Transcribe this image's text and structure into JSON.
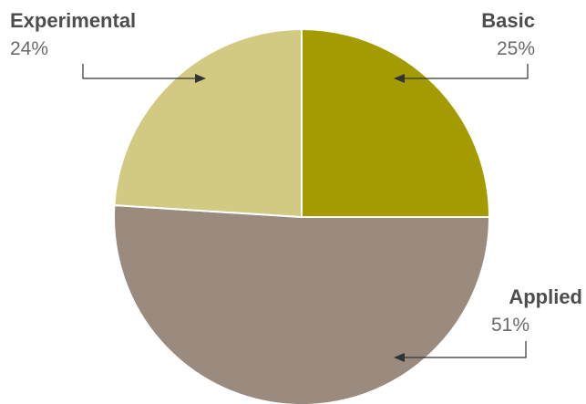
{
  "chart_data": {
    "type": "pie",
    "title": "",
    "slices": [
      {
        "label": "Basic",
        "value": 25,
        "display": "25%",
        "color": "#a39b00"
      },
      {
        "label": "Applied",
        "value": 51,
        "display": "51%",
        "color": "#9a8b7e"
      },
      {
        "label": "Experimental",
        "value": 24,
        "display": "24%",
        "color": "#d2ca82"
      }
    ],
    "start_angle_deg": 0,
    "direction": "clockwise",
    "legend": "none"
  }
}
